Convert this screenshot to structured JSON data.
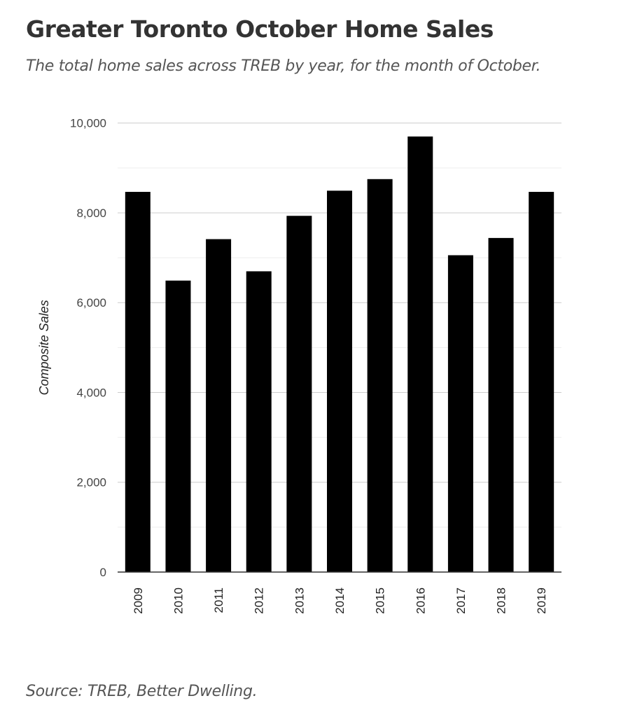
{
  "chart_data": {
    "type": "bar",
    "title": "Greater Toronto October Home Sales",
    "subtitle": "The total home sales across TREB by year, for the month of October.",
    "source": "Source: TREB, Better Dwelling.",
    "xlabel": "",
    "ylabel": "Composite Sales",
    "ylim": [
      0,
      10000
    ],
    "yticks": [
      0,
      2000,
      4000,
      6000,
      8000,
      10000
    ],
    "ytick_labels": [
      "0",
      "2,000",
      "4,000",
      "6,000",
      "8,000",
      "10,000"
    ],
    "grid": true,
    "categories": [
      "2009",
      "2010",
      "2011",
      "2012",
      "2013",
      "2014",
      "2015",
      "2016",
      "2017",
      "2018",
      "2019"
    ],
    "values": [
      8467,
      6491,
      7414,
      6698,
      7933,
      8493,
      8751,
      9700,
      7056,
      7440,
      8467
    ],
    "bar_color": "#000000"
  }
}
